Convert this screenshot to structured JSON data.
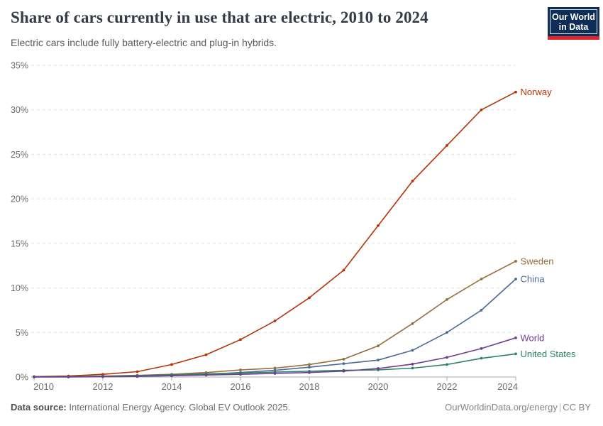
{
  "header": {
    "title": "Share of cars currently in use that are electric, 2010 to 2024",
    "subtitle": "Electric cars include fully battery-electric and plug-in hybrids."
  },
  "logo": {
    "line1": "Our World",
    "line2": "in Data",
    "bg_color": "#0F2E57",
    "stripe_color": "#E0262C"
  },
  "footer": {
    "source_label": "Data source:",
    "source_text": " International Energy Agency. Global EV Outlook 2025.",
    "site": "OurWorldinData.org/energy",
    "separator": "|",
    "license": "CC BY"
  },
  "chart_data": {
    "type": "line",
    "title": "Share of cars currently in use that are electric, 2010 to 2024",
    "subtitle": "Electric cars include fully battery-electric and plug-in hybrids.",
    "xlabel": "",
    "ylabel": "",
    "x": [
      2010,
      2011,
      2012,
      2013,
      2014,
      2015,
      2016,
      2017,
      2018,
      2019,
      2020,
      2021,
      2022,
      2023,
      2024
    ],
    "x_tick_years": [
      2010,
      2012,
      2014,
      2016,
      2018,
      2020,
      2022,
      2024
    ],
    "ylim": [
      0,
      35
    ],
    "y_ticks": [
      0,
      5,
      10,
      15,
      20,
      25,
      30,
      35
    ],
    "y_tick_suffix": "%",
    "grid": "horizontal-dashed",
    "legend": "end-of-line-labels",
    "series": [
      {
        "name": "Norway",
        "color": "#B13507",
        "values": [
          0.05,
          0.12,
          0.3,
          0.6,
          1.4,
          2.5,
          4.2,
          6.3,
          8.9,
          12,
          17,
          22,
          26,
          30,
          32
        ]
      },
      {
        "name": "Sweden",
        "color": "#996D39",
        "values": [
          0.03,
          0.05,
          0.1,
          0.18,
          0.3,
          0.5,
          0.8,
          1.0,
          1.4,
          2.0,
          3.5,
          6.0,
          8.7,
          11,
          13
        ]
      },
      {
        "name": "China",
        "color": "#4C6A9C",
        "values": [
          0.0,
          0.01,
          0.03,
          0.06,
          0.15,
          0.3,
          0.5,
          0.75,
          1.1,
          1.5,
          1.9,
          3.0,
          5.0,
          7.5,
          11
        ]
      },
      {
        "name": "United States",
        "color": "#2C8465",
        "values": [
          0.02,
          0.04,
          0.08,
          0.15,
          0.25,
          0.35,
          0.45,
          0.55,
          0.65,
          0.75,
          0.8,
          1.0,
          1.4,
          2.1,
          2.6
        ]
      },
      {
        "name": "World",
        "color": "#6D3E91",
        "values": [
          0.01,
          0.02,
          0.04,
          0.08,
          0.14,
          0.22,
          0.3,
          0.4,
          0.5,
          0.66,
          0.95,
          1.45,
          2.2,
          3.2,
          4.4
        ]
      }
    ]
  }
}
